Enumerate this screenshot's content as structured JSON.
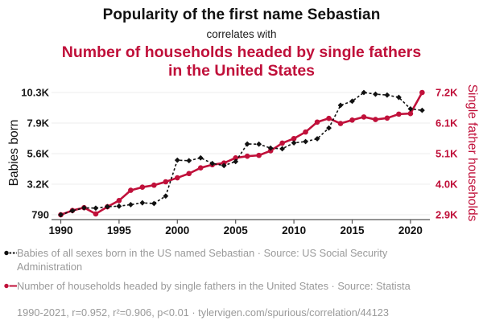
{
  "header": {
    "title": "Popularity of the first name Sebastian",
    "connector": "correlates with",
    "subtitle": "Number of households headed by single fathers in the United States"
  },
  "colors": {
    "accent_red": "#c0103a",
    "series_black": "#111111",
    "legend_gray": "#999999",
    "gridline": "#ececec",
    "axis_line": "#555555"
  },
  "chart_data": {
    "type": "line",
    "x": [
      1990,
      1991,
      1992,
      1993,
      1994,
      1995,
      1996,
      1997,
      1998,
      1999,
      2000,
      2001,
      2002,
      2003,
      2004,
      2005,
      2006,
      2007,
      2008,
      2009,
      2010,
      2011,
      2012,
      2013,
      2014,
      2015,
      2016,
      2017,
      2018,
      2019,
      2020,
      2021
    ],
    "x_ticks": [
      1990,
      1995,
      2000,
      2005,
      2010,
      2015,
      2020
    ],
    "series": [
      {
        "name": "Babies of all sexes born in the US named Sebastian",
        "axis": "left",
        "color": "#111111",
        "style": "dashed",
        "marker": "diamond",
        "values": [
          790,
          1100,
          1330,
          1310,
          1420,
          1460,
          1580,
          1720,
          1670,
          2250,
          5050,
          5010,
          5230,
          4790,
          4630,
          4940,
          6310,
          6300,
          5990,
          5940,
          6400,
          6500,
          6720,
          7560,
          9330,
          9650,
          10330,
          10200,
          10130,
          9950,
          9050,
          8940
        ]
      },
      {
        "name": "Number of households headed by single fathers in the United States",
        "axis": "right",
        "color": "#c0103a",
        "style": "solid",
        "marker": "circle",
        "values": [
          2900,
          3050,
          3150,
          2930,
          3180,
          3400,
          3760,
          3870,
          3940,
          4060,
          4200,
          4350,
          4550,
          4660,
          4720,
          4900,
          4960,
          4990,
          5150,
          5420,
          5580,
          5810,
          6160,
          6290,
          6110,
          6230,
          6340,
          6250,
          6300,
          6440,
          6460,
          7200
        ]
      }
    ],
    "left_axis": {
      "label": "Babies born",
      "tick_labels": [
        "790",
        "3.2K",
        "5.6K",
        "7.9K",
        "10.3K"
      ],
      "tick_values": [
        790,
        3175,
        5560,
        7945,
        10330
      ],
      "range": [
        790,
        10330
      ]
    },
    "right_axis": {
      "label": "Single father households",
      "tick_labels": [
        "2.9K",
        "4.0K",
        "5.1K",
        "6.1K",
        "7.2K"
      ],
      "tick_values": [
        2900,
        3975,
        5050,
        6125,
        7200
      ],
      "range": [
        2900,
        7200
      ]
    },
    "grid": true,
    "legend_position": "bottom"
  },
  "legend": {
    "items": [
      {
        "label": "Babies of all sexes born in the US named Sebastian · Source: US Social Security Administration",
        "color": "#111111",
        "style": "dashed"
      },
      {
        "label": "Number of households headed by single fathers in the United States · Source: Statista",
        "color": "#c0103a",
        "style": "solid"
      }
    ]
  },
  "footer": {
    "stats": "1990-2021, r=0.952, r²=0.906, p<0.01 · tylervigen.com/spurious/correlation/44123"
  }
}
